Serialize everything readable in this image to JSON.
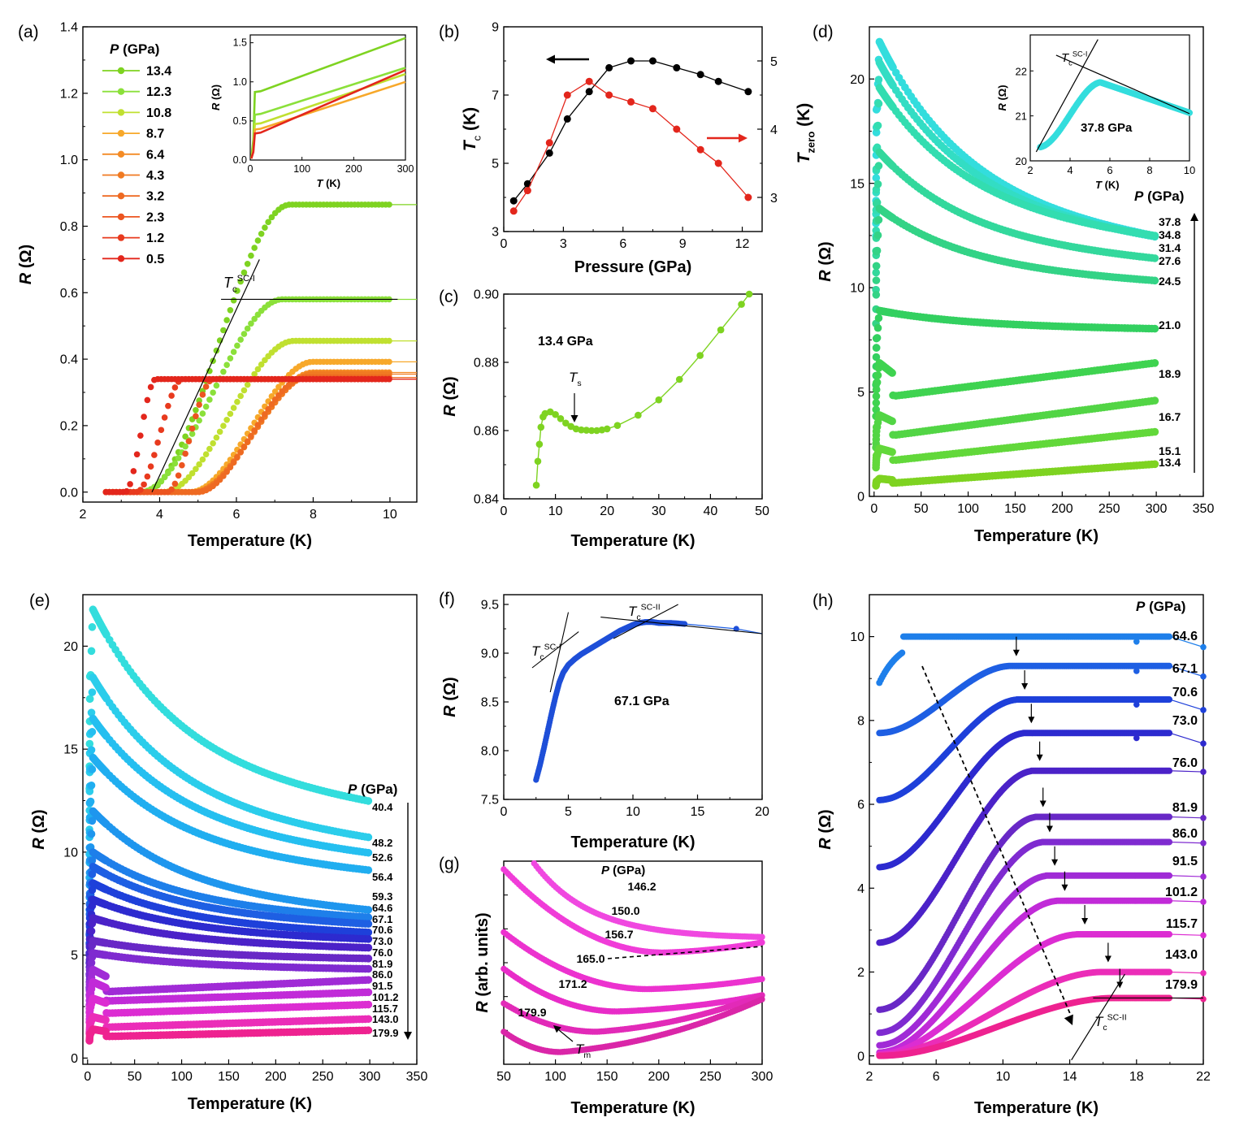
{
  "chart_data": [
    {
      "panel": "(a)",
      "type": "line",
      "xlabel": "Temperature (K)",
      "ylabel": "R (Ω)",
      "xlim": [
        2,
        10.7
      ],
      "ylim": [
        -0.03,
        1.4
      ],
      "xticks": [
        2,
        4,
        6,
        8,
        10
      ],
      "yticks": [
        0.0,
        0.2,
        0.4,
        0.6,
        0.8,
        1.0,
        1.2,
        1.4
      ],
      "legend_title": "P (GPa)",
      "series": [
        {
          "name": "13.4",
          "color": "#7ED321",
          "y0": 0.0,
          "y1": 0.865,
          "t0": 3.6,
          "t1": 7.4
        },
        {
          "name": "12.3",
          "color": "#8BE03A",
          "y0": 0.0,
          "y1": 0.58,
          "t0": 3.5,
          "t1": 7.2
        },
        {
          "name": "10.8",
          "color": "#C0E030",
          "y0": 0.0,
          "y1": 0.455,
          "t0": 4.1,
          "t1": 7.5
        },
        {
          "name": "8.7",
          "color": "#F7A82A",
          "y0": 0.0,
          "y1": 0.392,
          "t0": 4.8,
          "t1": 8.0
        },
        {
          "name": "6.4",
          "color": "#F48B25",
          "y0": 0.0,
          "y1": 0.36,
          "t0": 4.9,
          "t1": 8.0
        },
        {
          "name": "4.3",
          "color": "#F07A22",
          "y0": 0.0,
          "y1": 0.355,
          "t0": 4.9,
          "t1": 8.0
        },
        {
          "name": "3.2",
          "color": "#EE6A22",
          "y0": 0.0,
          "y1": 0.345,
          "t0": 5.0,
          "t1": 7.8
        },
        {
          "name": "2.3",
          "color": "#EC5520",
          "y0": 0.0,
          "y1": 0.34,
          "t0": 4.2,
          "t1": 5.4
        },
        {
          "name": "1.2",
          "color": "#E83A1E",
          "y0": 0.0,
          "y1": 0.34,
          "t0": 3.4,
          "t1": 4.6
        },
        {
          "name": "0.5",
          "color": "#E3261C",
          "y0": 0.0,
          "y1": 0.34,
          "t0": 3.1,
          "t1": 3.9
        }
      ],
      "annotations": [
        "T_c^{SC-I}"
      ],
      "inset": {
        "xlabel": "T (K)",
        "ylabel": "R (Ω)",
        "xlim": [
          0,
          300
        ],
        "ylim": [
          0,
          1.6
        ],
        "xticks": [
          0,
          100,
          200,
          300
        ],
        "yticks": [
          "0.0",
          "0.5",
          "1.0",
          "1.5"
        ],
        "series": [
          {
            "name": "13.4",
            "color": "#7ED321",
            "y10": 0.87,
            "y300": 1.56
          },
          {
            "name": "12.3",
            "color": "#8BE03A",
            "y10": 0.58,
            "y300": 1.18
          },
          {
            "name": "10.8",
            "color": "#C0E030",
            "y10": 0.46,
            "y300": 1.1
          },
          {
            "name": "8.7",
            "color": "#F7A82A",
            "y10": 0.39,
            "y300": 1.0
          },
          {
            "name": "0.5",
            "color": "#E3261C",
            "y10": 0.34,
            "y300": 1.15
          }
        ]
      }
    },
    {
      "panel": "(b)",
      "type": "scatter",
      "xlabel": "Pressure (GPa)",
      "ylabel_left": "T_c (K)",
      "ylabel_right": "T_zero (K)",
      "xlim": [
        0,
        13
      ],
      "ylim_left": [
        3,
        9
      ],
      "ylim_right": [
        2.5,
        5.5
      ],
      "xticks": [
        0,
        3,
        6,
        9,
        12
      ],
      "yticks_left": [
        3,
        5,
        7,
        9
      ],
      "yticks_right": [
        3,
        4,
        5
      ],
      "series": [
        {
          "name": "T_c",
          "color": "#000000",
          "axis": "left",
          "x": [
            0.5,
            1.2,
            2.3,
            3.2,
            4.3,
            5.3,
            6.4,
            7.5,
            8.7,
            9.9,
            10.8,
            12.3
          ],
          "y": [
            3.9,
            4.4,
            5.3,
            6.3,
            7.1,
            7.8,
            8.0,
            8.0,
            7.8,
            7.6,
            7.4,
            7.1
          ]
        },
        {
          "name": "T_zero",
          "color": "#E3261C",
          "axis": "right",
          "x": [
            0.5,
            1.2,
            2.3,
            3.2,
            4.3,
            5.3,
            6.4,
            7.5,
            8.7,
            9.9,
            10.8,
            12.3
          ],
          "y": [
            2.8,
            3.1,
            3.8,
            4.5,
            4.7,
            4.5,
            4.4,
            4.3,
            4.0,
            3.7,
            3.5,
            3.0
          ]
        }
      ]
    },
    {
      "panel": "(c)",
      "type": "line",
      "xlabel": "Temperature (K)",
      "ylabel": "R (Ω)",
      "xlim": [
        0,
        50
      ],
      "ylim": [
        0.84,
        0.9
      ],
      "xticks": [
        0,
        10,
        20,
        30,
        40,
        50
      ],
      "yticks": [
        "0.84",
        "0.86",
        "0.88",
        "0.90"
      ],
      "series": [
        {
          "name": "13.4 GPa",
          "color": "#7ED321",
          "x": [
            6.3,
            6.6,
            6.9,
            7.2,
            7.6,
            8.0,
            9.0,
            10,
            11,
            12,
            13,
            14,
            15,
            16,
            17,
            18,
            19,
            20,
            22,
            26,
            30,
            34,
            38,
            42,
            46,
            47.5
          ],
          "y": [
            0.844,
            0.851,
            0.856,
            0.861,
            0.864,
            0.865,
            0.8655,
            0.8647,
            0.8635,
            0.8622,
            0.8612,
            0.8605,
            0.8602,
            0.8601,
            0.86,
            0.86,
            0.8602,
            0.8605,
            0.8615,
            0.8645,
            0.869,
            0.875,
            0.882,
            0.8895,
            0.897,
            0.9
          ]
        }
      ],
      "annotations": [
        "13.4 GPa",
        "T_s"
      ]
    },
    {
      "panel": "(d)",
      "type": "line",
      "xlabel": "Temperature (K)",
      "ylabel": "R (Ω)",
      "xlim": [
        -5,
        350
      ],
      "ylim": [
        0,
        22.5
      ],
      "xticks": [
        0,
        50,
        100,
        150,
        200,
        250,
        300,
        350
      ],
      "yticks": [
        0,
        5,
        10,
        15,
        20
      ],
      "legend_title": "P (GPa)",
      "series": [
        {
          "name": "37.8",
          "color": "#33DDDD",
          "peak": 21.8,
          "end": 12.1
        },
        {
          "name": "34.8",
          "color": "#33DDC4",
          "peak": 20.8,
          "end": 12.1
        },
        {
          "name": "31.4",
          "color": "#33DDB0",
          "peak": 19.6,
          "end": 12.2
        },
        {
          "name": "27.6",
          "color": "#33D89C",
          "peak": 16.5,
          "end": 11.2
        },
        {
          "name": "24.5",
          "color": "#33D386",
          "peak": 13.8,
          "end": 10.2
        },
        {
          "name": "21.0",
          "color": "#33D060",
          "peak": 8.9,
          "end": 8.0
        },
        {
          "name": "18.9",
          "color": "#3FD350",
          "peak": 6.4,
          "end": 6.4
        },
        {
          "name": "16.7",
          "color": "#52D545",
          "peak": 3.9,
          "end": 4.6
        },
        {
          "name": "15.1",
          "color": "#62D83A",
          "peak": 2.3,
          "end": 3.1
        },
        {
          "name": "13.4",
          "color": "#7ED321",
          "peak": 0.85,
          "end": 1.55
        }
      ],
      "inset": {
        "xlabel": "T (K)",
        "ylabel": "R (Ω)",
        "xlim": [
          2,
          10
        ],
        "ylim": [
          20,
          22.8
        ],
        "xticks": [
          2,
          4,
          6,
          8,
          10
        ],
        "yticks": [
          20,
          21,
          22
        ],
        "annotations": [
          "T_c^{SC-I}",
          "37.8 GPa"
        ]
      }
    },
    {
      "panel": "(e)",
      "type": "line",
      "xlabel": "Temperature (K)",
      "ylabel": "R (Ω)",
      "xlim": [
        -5,
        350
      ],
      "ylim": [
        -0.3,
        22.5
      ],
      "xticks": [
        0,
        50,
        100,
        150,
        200,
        250,
        300,
        350
      ],
      "yticks": [
        0,
        5,
        10,
        15,
        20
      ],
      "legend_title": "P (GPa)",
      "series": [
        {
          "name": "40.4",
          "color": "#33DDDD",
          "peak": 21.8,
          "end": 12.1
        },
        {
          "name": "48.2",
          "color": "#2BCDEB",
          "peak": 18.5,
          "end": 10.4
        },
        {
          "name": "52.6",
          "color": "#25BFF0",
          "peak": 16.5,
          "end": 9.7
        },
        {
          "name": "56.4",
          "color": "#20AEF0",
          "peak": 14.6,
          "end": 8.9
        },
        {
          "name": "59.3",
          "color": "#1E96EE",
          "peak": 12.0,
          "end": 7.0
        },
        {
          "name": "64.6",
          "color": "#1E7FEA",
          "peak": 10.0,
          "end": 6.7
        },
        {
          "name": "67.1",
          "color": "#1E5FE3",
          "peak": 9.3,
          "end": 6.4
        },
        {
          "name": "70.6",
          "color": "#1E40DA",
          "peak": 8.5,
          "end": 6.0
        },
        {
          "name": "73.0",
          "color": "#2D2ACF",
          "peak": 7.7,
          "end": 5.7
        },
        {
          "name": "76.0",
          "color": "#4B22C8",
          "peak": 6.8,
          "end": 5.3
        },
        {
          "name": "81.9",
          "color": "#6828C6",
          "peak": 5.7,
          "end": 4.8
        },
        {
          "name": "86.0",
          "color": "#7F2BD0",
          "peak": 5.1,
          "end": 4.3
        },
        {
          "name": "91.5",
          "color": "#A02BD6",
          "peak": 4.3,
          "end": 3.8
        },
        {
          "name": "101.2",
          "color": "#C12BD8",
          "peak": 3.7,
          "end": 3.2
        },
        {
          "name": "115.7",
          "color": "#DC2DD2",
          "peak": 2.9,
          "end": 2.6
        },
        {
          "name": "143.0",
          "color": "#EB2DB8",
          "peak": 2.0,
          "end": 1.9
        },
        {
          "name": "179.9",
          "color": "#EE2290",
          "peak": 1.4,
          "end": 1.35
        }
      ]
    },
    {
      "panel": "(f)",
      "type": "line",
      "xlabel": "Temperature (K)",
      "ylabel": "R (Ω)",
      "xlim": [
        0,
        20
      ],
      "ylim": [
        7.5,
        9.6
      ],
      "xticks": [
        0,
        5,
        10,
        15,
        20
      ],
      "yticks": [
        "7.5",
        "8.0",
        "8.5",
        "9.0",
        "9.5"
      ],
      "series": [
        {
          "name": "67.1 GPa",
          "color": "#1E5FE3",
          "x": [
            2.5,
            2.8,
            3.1,
            3.4,
            3.7,
            4.0,
            4.3,
            4.6,
            5.0,
            5.5,
            6.0,
            6.5,
            7.0,
            7.5,
            8.0,
            8.5,
            9.0,
            9.5,
            10.0,
            10.5,
            11.0,
            11.5,
            12.0,
            12.5,
            13.0,
            14.0,
            18.0,
            20.0
          ],
          "y": [
            7.7,
            7.85,
            8.02,
            8.2,
            8.38,
            8.55,
            8.7,
            8.8,
            8.88,
            8.94,
            8.99,
            9.03,
            9.07,
            9.11,
            9.15,
            9.19,
            9.23,
            9.26,
            9.29,
            9.31,
            9.32,
            9.32,
            9.31,
            9.31,
            9.31,
            9.3,
            9.25,
            9.2
          ]
        }
      ],
      "annotations": [
        "T_c^{SC-I}",
        "T_c^{SC-II}",
        "67.1 GPa"
      ]
    },
    {
      "panel": "(g)",
      "type": "line",
      "xlabel": "Temperature (K)",
      "ylabel": "R (arb. units)",
      "xlim": [
        50,
        300
      ],
      "xticks": [
        50,
        100,
        150,
        200,
        250,
        300
      ],
      "legend_title": "P (GPa)",
      "series": [
        {
          "name": "146.2",
          "color": "#F048E0"
        },
        {
          "name": "150.0",
          "color": "#F03CD8"
        },
        {
          "name": "156.7",
          "color": "#EC32CF"
        },
        {
          "name": "165.0",
          "color": "#E82CC8"
        },
        {
          "name": "171.2",
          "color": "#E22AB8"
        },
        {
          "name": "179.9",
          "color": "#DA26A8"
        }
      ],
      "annotations": [
        "T_m"
      ]
    },
    {
      "panel": "(h)",
      "type": "line",
      "xlabel": "Temperature (K)",
      "ylabel": "R (Ω)",
      "xlim": [
        2,
        22
      ],
      "ylim": [
        -0.2,
        11
      ],
      "xticks": [
        2,
        6,
        10,
        14,
        18,
        22
      ],
      "yticks": [
        0,
        2,
        4,
        6,
        8,
        10
      ],
      "legend_title": "P (GPa)",
      "series": [
        {
          "name": "64.6",
          "color": "#1E7FEA",
          "Rn": 10.0,
          "Rlow": 8.9,
          "Tc": 4.0
        },
        {
          "name": "67.1",
          "color": "#1E5FE3",
          "Rn": 9.3,
          "Rlow": 7.7,
          "Tc": 10.3
        },
        {
          "name": "70.6",
          "color": "#1E40DA",
          "Rn": 8.5,
          "Rlow": 6.1,
          "Tc": 10.8
        },
        {
          "name": "73.0",
          "color": "#2D2ACF",
          "Rn": 7.7,
          "Rlow": 4.5,
          "Tc": 11.2
        },
        {
          "name": "76.0",
          "color": "#4B22C8",
          "Rn": 6.8,
          "Rlow": 2.7,
          "Tc": 11.7
        },
        {
          "name": "81.9",
          "color": "#6828C6",
          "Rn": 5.7,
          "Rlow": 1.1,
          "Tc": 11.9
        },
        {
          "name": "86.0",
          "color": "#7F2BD0",
          "Rn": 5.1,
          "Rlow": 0.55,
          "Tc": 12.3
        },
        {
          "name": "91.5",
          "color": "#A02BD6",
          "Rn": 4.3,
          "Rlow": 0.25,
          "Tc": 12.6
        },
        {
          "name": "101.2",
          "color": "#C12BD8",
          "Rn": 3.7,
          "Rlow": 0.08,
          "Tc": 13.2
        },
        {
          "name": "115.7",
          "color": "#DC2DD2",
          "Rn": 2.9,
          "Rlow": 0.04,
          "Tc": 14.4
        },
        {
          "name": "143.0",
          "color": "#EB2DB8",
          "Rn": 2.0,
          "Rlow": 0.02,
          "Tc": 15.8
        },
        {
          "name": "179.9",
          "color": "#EE2290",
          "Rn": 1.38,
          "Rlow": 0.0,
          "Tc": 16.5
        }
      ],
      "annotations": [
        "T_c^{SC-II}"
      ]
    }
  ]
}
